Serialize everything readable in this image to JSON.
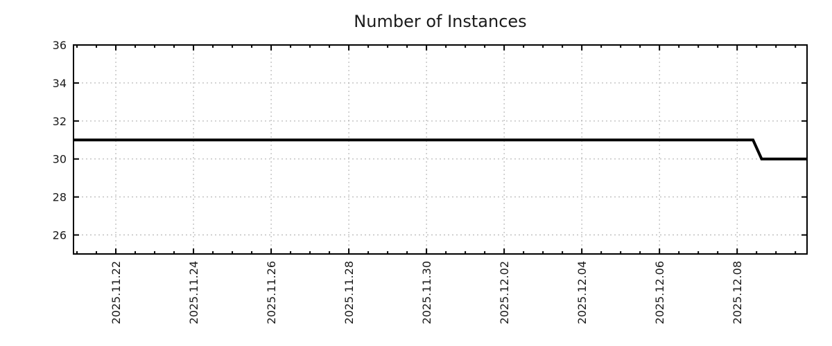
{
  "page": {
    "background": "#ffffff"
  },
  "chart_data": {
    "type": "line",
    "title": "Number of Instances",
    "legend_position": "none",
    "grid": {
      "visible": true,
      "style": "dotted",
      "color": "#a9a9a9"
    },
    "frame_color": "#000000",
    "x_axis": {
      "kind": "time",
      "label": "",
      "range_days": [
        -1.09,
        17.8
      ],
      "major_tick_offsets_days": [
        0,
        2,
        4,
        6,
        8,
        10,
        12,
        14,
        16
      ],
      "major_tick_labels": [
        "2025.11.22",
        "2025.11.24",
        "2025.11.26",
        "2025.11.28",
        "2025.11.30",
        "2025.12.02",
        "2025.12.04",
        "2025.12.06",
        "2025.12.08"
      ],
      "minor_tick_interval_days": 0.5,
      "label_rotation_deg": -90
    },
    "y_axis": {
      "label": "",
      "range": [
        25,
        36
      ],
      "major_ticks": [
        26,
        28,
        30,
        32,
        34,
        36
      ],
      "major_tick_labels": [
        "26",
        "28",
        "30",
        "32",
        "34",
        "36"
      ]
    },
    "series": [
      {
        "name": "instances",
        "color": "#000000",
        "line_width": 4,
        "points_days_value": [
          [
            -1.09,
            31
          ],
          [
            16.41,
            31
          ],
          [
            16.63,
            30
          ],
          [
            17.8,
            30
          ]
        ]
      }
    ]
  }
}
